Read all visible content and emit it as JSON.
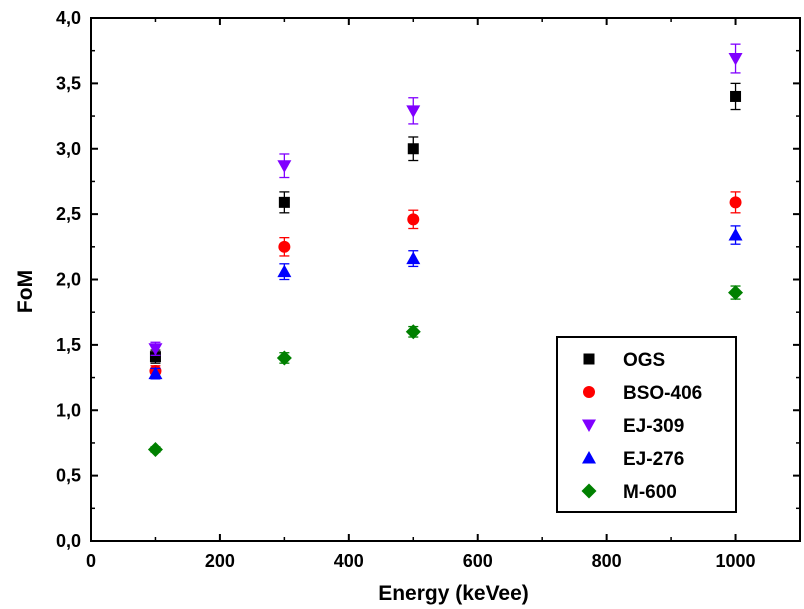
{
  "chart_data": {
    "type": "scatter",
    "xlabel": "Energy (keVee)",
    "ylabel": "FoM",
    "xlim": [
      0,
      1100
    ],
    "ylim": [
      0,
      4.0
    ],
    "x_ticks": [
      "0",
      "200",
      "400",
      "600",
      "800",
      "1000"
    ],
    "x_tick_values": [
      0,
      200,
      400,
      600,
      800,
      1000
    ],
    "y_ticks": [
      "0,0",
      "0,5",
      "1,0",
      "1,5",
      "2,0",
      "2,5",
      "3,0",
      "3,5",
      "4,0"
    ],
    "y_tick_values": [
      0,
      0.5,
      1.0,
      1.5,
      2.0,
      2.5,
      3.0,
      3.5,
      4.0
    ],
    "grid": false,
    "legend_position": "bottom-right",
    "series": [
      {
        "name": "OGS",
        "marker": "square",
        "color": "#000000",
        "x": [
          100,
          300,
          500,
          1000
        ],
        "y": [
          1.41,
          2.59,
          3.0,
          3.4
        ],
        "err": [
          0.05,
          0.08,
          0.09,
          0.1
        ]
      },
      {
        "name": "BSO-406",
        "marker": "circle",
        "color": "#ff0000",
        "x": [
          100,
          300,
          500,
          1000
        ],
        "y": [
          1.3,
          2.25,
          2.46,
          2.59
        ],
        "err": [
          0.04,
          0.07,
          0.07,
          0.08
        ]
      },
      {
        "name": "EJ-309",
        "marker": "triangle-down",
        "color": "#8000ff",
        "x": [
          100,
          300,
          500,
          1000
        ],
        "y": [
          1.47,
          2.87,
          3.29,
          3.69
        ],
        "err": [
          0.05,
          0.09,
          0.1,
          0.11
        ]
      },
      {
        "name": "EJ-276",
        "marker": "triangle-up",
        "color": "#0000ff",
        "x": [
          100,
          300,
          500,
          1000
        ],
        "y": [
          1.28,
          2.06,
          2.16,
          2.34
        ],
        "err": [
          0.04,
          0.06,
          0.06,
          0.07
        ]
      },
      {
        "name": "M-600",
        "marker": "diamond",
        "color": "#008000",
        "x": [
          100,
          300,
          500,
          1000
        ],
        "y": [
          0.7,
          1.4,
          1.6,
          1.9
        ],
        "err": [
          0.02,
          0.04,
          0.04,
          0.05
        ]
      }
    ]
  }
}
